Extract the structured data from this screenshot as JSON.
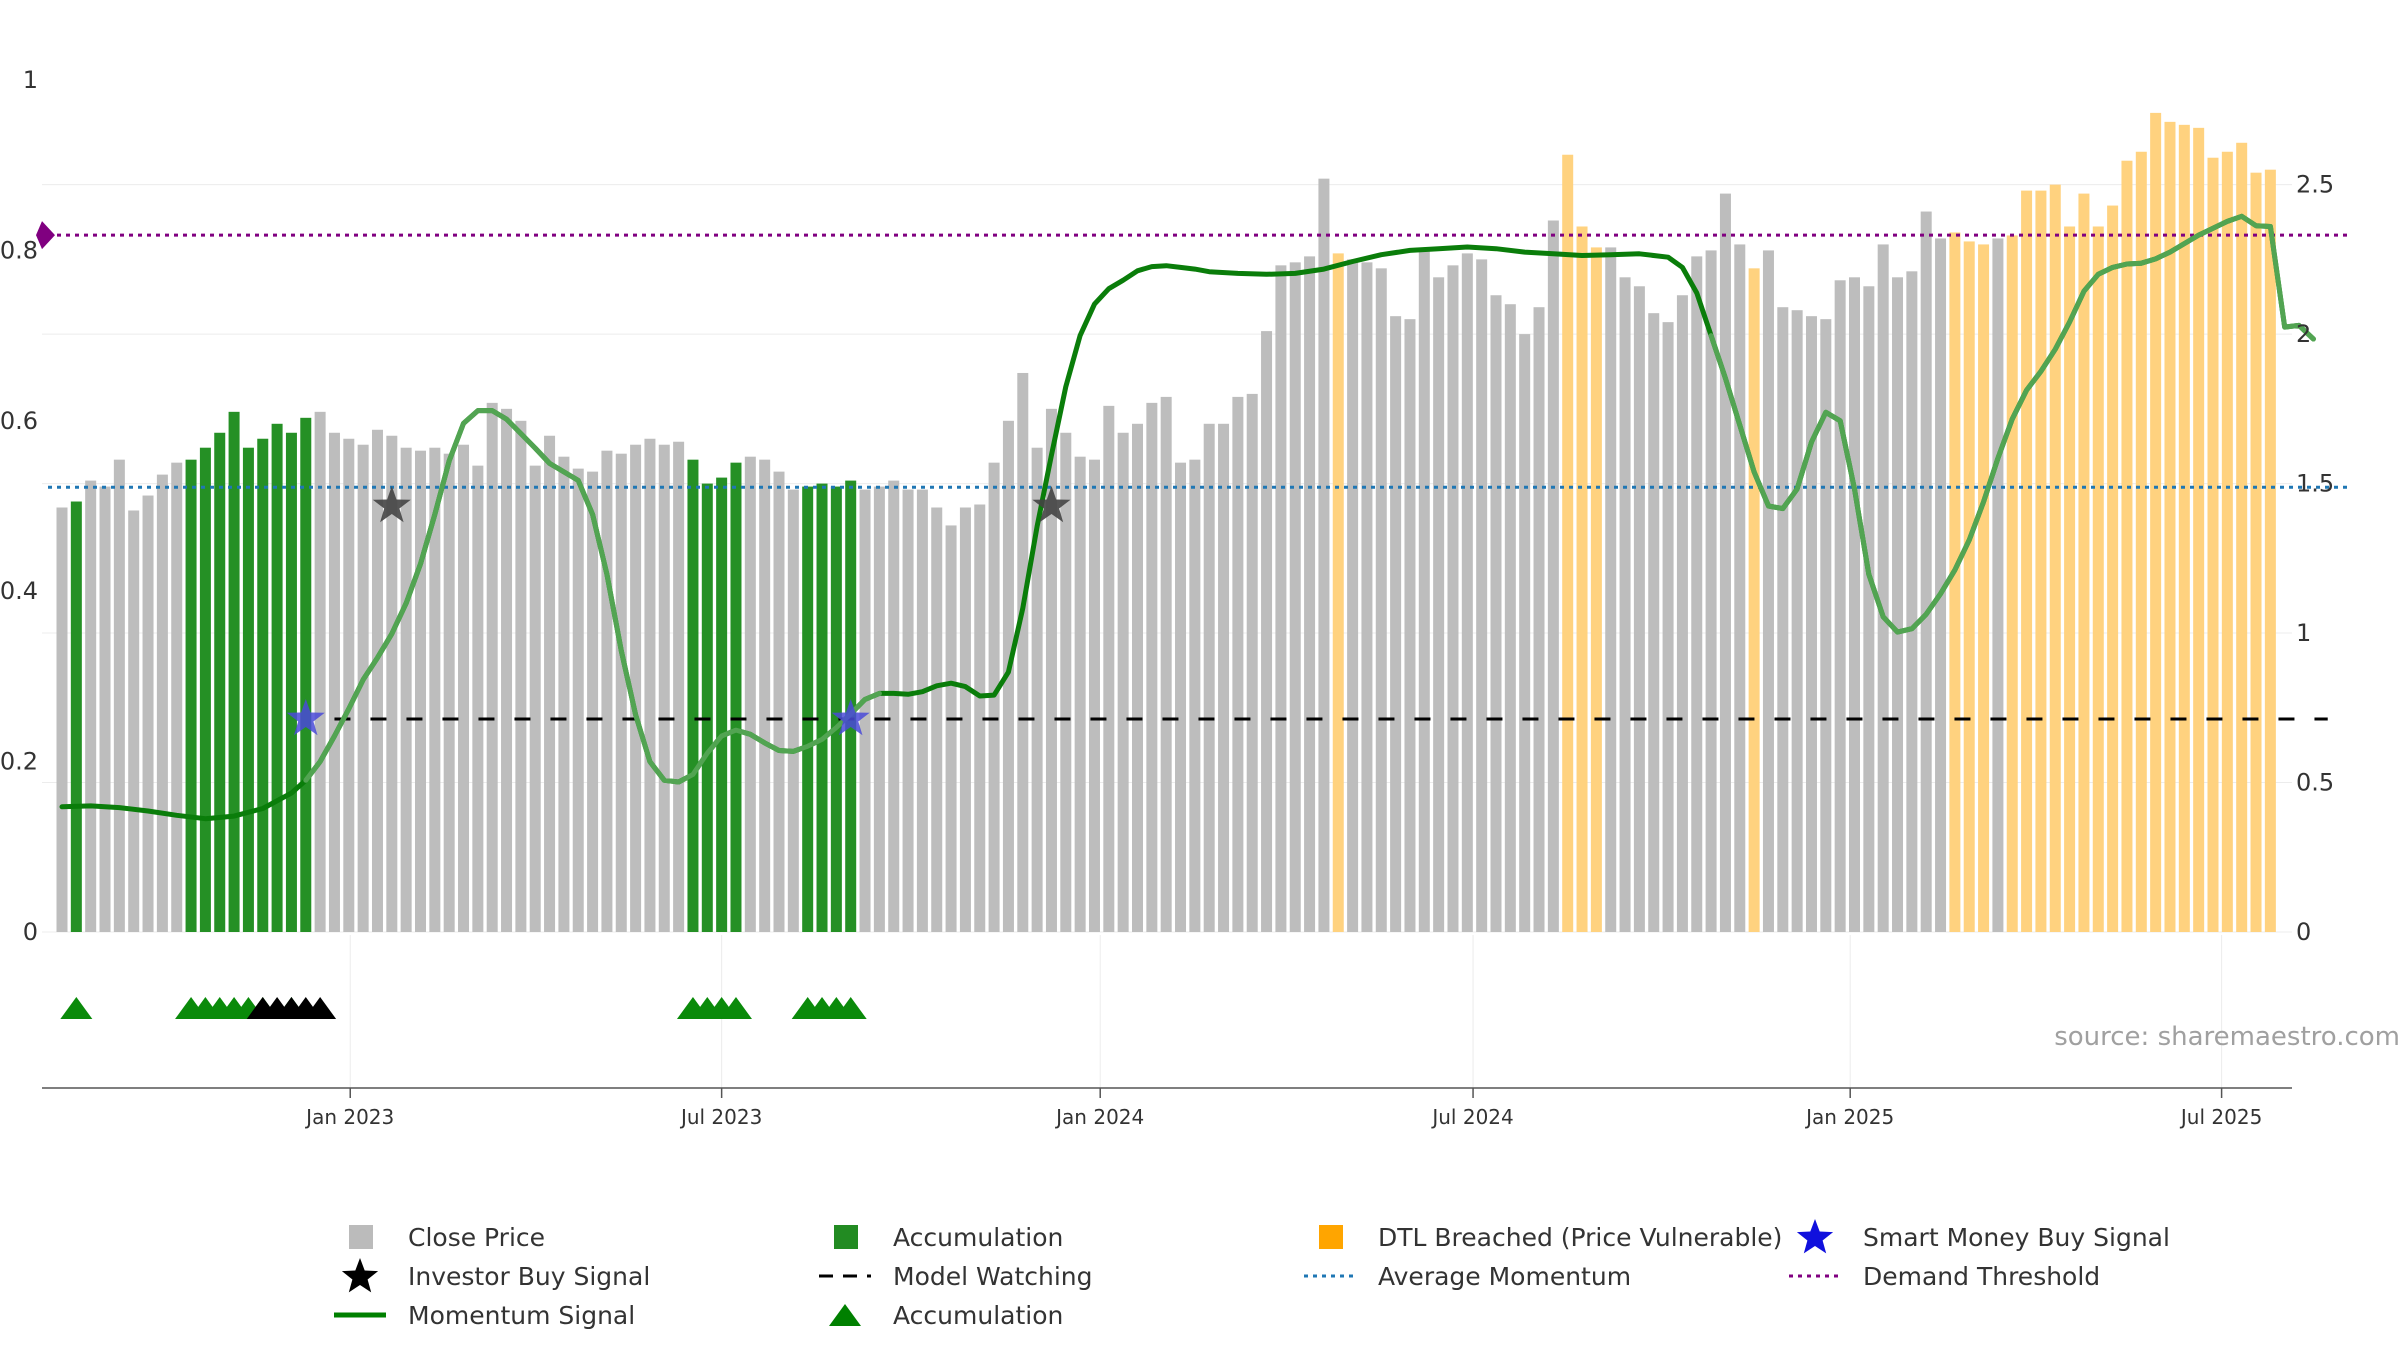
{
  "chart_data": {
    "type": "bar",
    "source": "source: sharemaestro.com",
    "y_left": {
      "range": [
        0,
        1
      ],
      "ticks": [
        "0",
        "0.2",
        "0.4",
        "0.6",
        "0.8",
        "1"
      ]
    },
    "y_right": {
      "range": [
        0,
        2.85
      ],
      "ticks": [
        "0",
        "0.5",
        "1",
        "1.5",
        "2",
        "2.5"
      ]
    },
    "x_ticks": [
      {
        "label": "Jan 2023",
        "week": 20.1
      },
      {
        "label": "Jul 2023",
        "week": 46.0
      },
      {
        "label": "Jan 2024",
        "week": 72.4
      },
      {
        "label": "Jul 2024",
        "week": 98.4
      },
      {
        "label": "Jan 2025",
        "week": 124.7
      },
      {
        "label": "Jul 2025",
        "week": 150.6
      }
    ],
    "close_price": [
      1.42,
      1.44,
      1.51,
      1.49,
      1.58,
      1.41,
      1.46,
      1.53,
      1.57,
      1.58,
      1.62,
      1.67,
      1.74,
      1.62,
      1.65,
      1.7,
      1.67,
      1.72,
      1.74,
      1.67,
      1.65,
      1.63,
      1.68,
      1.66,
      1.62,
      1.61,
      1.62,
      1.6,
      1.63,
      1.56,
      1.77,
      1.75,
      1.71,
      1.56,
      1.66,
      1.59,
      1.55,
      1.54,
      1.61,
      1.6,
      1.63,
      1.65,
      1.63,
      1.64,
      1.58,
      1.5,
      1.52,
      1.57,
      1.59,
      1.58,
      1.54,
      1.48,
      1.49,
      1.5,
      1.49,
      1.51,
      1.48,
      1.49,
      1.51,
      1.48,
      1.48,
      1.42,
      1.36,
      1.42,
      1.43,
      1.57,
      1.71,
      1.87,
      1.62,
      1.75,
      1.67,
      1.59,
      1.58,
      1.76,
      1.67,
      1.7,
      1.77,
      1.79,
      1.57,
      1.58,
      1.7,
      1.7,
      1.79,
      1.8,
      2.01,
      2.23,
      2.24,
      2.26,
      2.52,
      2.27,
      2.25,
      2.24,
      2.22,
      2.06,
      2.05,
      2.28,
      2.19,
      2.23,
      2.27,
      2.25,
      2.13,
      2.1,
      2.0,
      2.09,
      2.38,
      2.6,
      2.36,
      2.29,
      2.29,
      2.19,
      2.16,
      2.07,
      2.04,
      2.13,
      2.26,
      2.28,
      2.47,
      2.3,
      2.22,
      2.28,
      2.09,
      2.08,
      2.06,
      2.05,
      2.18,
      2.19,
      2.16,
      2.3,
      2.19,
      2.21,
      2.41,
      2.32,
      2.34,
      2.31,
      2.3,
      2.32,
      2.33,
      2.48,
      2.48,
      2.5,
      2.36,
      2.47,
      2.36,
      2.43,
      2.58,
      2.61,
      2.74,
      2.71,
      2.7,
      2.69,
      2.59,
      2.61,
      2.64,
      2.54,
      2.55
    ],
    "state": "mmmmmmmmmmmmmmmmmmmmmmmmmmmmmmmmmmmmmmmmmmmmmmmmmmmmmmmmmmmmmmmmmmmmmmmmmmmmmmmmmmmmmmmmmmmmmmmmmmmmmmmmmmmmmmmmmmmmmmmmmmmmmmmmmmmmmmmmmmmmmmmmmmmmmmmmmmmm",
    "accumulation_weeks": [
      1,
      9,
      10,
      11,
      12,
      13,
      14,
      15,
      16,
      17,
      44,
      45,
      46,
      47,
      52,
      53,
      54,
      55
    ],
    "dtl_breached_weeks": [
      89,
      105,
      106,
      107,
      118,
      132,
      133,
      134,
      136,
      137,
      138,
      139,
      140,
      141,
      142,
      143,
      144,
      145,
      146,
      147,
      148,
      149,
      150,
      151,
      152,
      153,
      154,
      155,
      156,
      157,
      158
    ],
    "momentum": [
      [
        0,
        0.147
      ],
      [
        2,
        0.148
      ],
      [
        4,
        0.146
      ],
      [
        6,
        0.142
      ],
      [
        8,
        0.137
      ],
      [
        10,
        0.133
      ],
      [
        12,
        0.136
      ],
      [
        14,
        0.145
      ],
      [
        16,
        0.163
      ],
      [
        17,
        0.178
      ],
      [
        18,
        0.2
      ],
      [
        19,
        0.23
      ],
      [
        20,
        0.262
      ],
      [
        21,
        0.296
      ],
      [
        22,
        0.322
      ],
      [
        23,
        0.35
      ],
      [
        24,
        0.386
      ],
      [
        25,
        0.432
      ],
      [
        26,
        0.49
      ],
      [
        27,
        0.553
      ],
      [
        28,
        0.597
      ],
      [
        29,
        0.612
      ],
      [
        30,
        0.612
      ],
      [
        31,
        0.602
      ],
      [
        32,
        0.585
      ],
      [
        33,
        0.568
      ],
      [
        34,
        0.55
      ],
      [
        35,
        0.54
      ],
      [
        36,
        0.53
      ],
      [
        37,
        0.49
      ],
      [
        38,
        0.42
      ],
      [
        39,
        0.33
      ],
      [
        40,
        0.255
      ],
      [
        41,
        0.2
      ],
      [
        42,
        0.178
      ],
      [
        43,
        0.176
      ],
      [
        44,
        0.185
      ],
      [
        45,
        0.21
      ],
      [
        46,
        0.23
      ],
      [
        47,
        0.237
      ],
      [
        48,
        0.232
      ],
      [
        49,
        0.222
      ],
      [
        50,
        0.213
      ],
      [
        51,
        0.212
      ],
      [
        52,
        0.218
      ],
      [
        53,
        0.226
      ],
      [
        54,
        0.24
      ],
      [
        55,
        0.256
      ],
      [
        56,
        0.273
      ],
      [
        57,
        0.28
      ],
      [
        58,
        0.28
      ],
      [
        59,
        0.279
      ],
      [
        60,
        0.282
      ],
      [
        61,
        0.289
      ],
      [
        62,
        0.292
      ],
      [
        63,
        0.288
      ],
      [
        64,
        0.277
      ],
      [
        65,
        0.278
      ],
      [
        66,
        0.305
      ],
      [
        67,
        0.38
      ],
      [
        68,
        0.476
      ],
      [
        69,
        0.56
      ],
      [
        70,
        0.64
      ],
      [
        71,
        0.7
      ],
      [
        72,
        0.737
      ],
      [
        73,
        0.755
      ],
      [
        74,
        0.765
      ],
      [
        75,
        0.776
      ],
      [
        76,
        0.781
      ],
      [
        77,
        0.782
      ],
      [
        78,
        0.78
      ],
      [
        79,
        0.778
      ],
      [
        80,
        0.775
      ],
      [
        82,
        0.773
      ],
      [
        84,
        0.772
      ],
      [
        86,
        0.773
      ],
      [
        88,
        0.778
      ],
      [
        90,
        0.787
      ],
      [
        92,
        0.795
      ],
      [
        94,
        0.8
      ],
      [
        96,
        0.802
      ],
      [
        98,
        0.804
      ],
      [
        100,
        0.802
      ],
      [
        102,
        0.798
      ],
      [
        104,
        0.796
      ],
      [
        106,
        0.794
      ],
      [
        108,
        0.795
      ],
      [
        110,
        0.796
      ],
      [
        112,
        0.792
      ],
      [
        113,
        0.78
      ],
      [
        114,
        0.75
      ],
      [
        115,
        0.7
      ],
      [
        116,
        0.65
      ],
      [
        117,
        0.595
      ],
      [
        118,
        0.54
      ],
      [
        119,
        0.5
      ],
      [
        120,
        0.497
      ],
      [
        121,
        0.52
      ],
      [
        122,
        0.575
      ],
      [
        123,
        0.61
      ],
      [
        124,
        0.6
      ],
      [
        125,
        0.52
      ],
      [
        126,
        0.42
      ],
      [
        127,
        0.37
      ],
      [
        128,
        0.352
      ],
      [
        129,
        0.356
      ],
      [
        130,
        0.373
      ],
      [
        131,
        0.397
      ],
      [
        132,
        0.425
      ],
      [
        133,
        0.46
      ],
      [
        134,
        0.505
      ],
      [
        135,
        0.556
      ],
      [
        136,
        0.602
      ],
      [
        137,
        0.636
      ],
      [
        138,
        0.658
      ],
      [
        139,
        0.684
      ],
      [
        140,
        0.716
      ],
      [
        141,
        0.752
      ],
      [
        142,
        0.772
      ],
      [
        143,
        0.78
      ],
      [
        144,
        0.784
      ],
      [
        145,
        0.785
      ],
      [
        146,
        0.79
      ],
      [
        147,
        0.798
      ],
      [
        148,
        0.808
      ],
      [
        149,
        0.818
      ],
      [
        150,
        0.826
      ],
      [
        151,
        0.834
      ],
      [
        152,
        0.84
      ],
      [
        153,
        0.829
      ],
      [
        154,
        0.828
      ],
      [
        155,
        0.71
      ],
      [
        156,
        0.712
      ],
      [
        157,
        0.696
      ]
    ],
    "momentum_dim_ranges": [
      [
        17,
        57
      ],
      [
        115,
        158
      ]
    ],
    "model_watching": {
      "value": 0.25,
      "from_week": 19,
      "to_week": 158
    },
    "average_momentum": 0.522,
    "demand_threshold": 0.818,
    "smart_money_signals": [
      [
        17,
        0.25
      ],
      [
        55,
        0.25
      ]
    ],
    "investor_buy_signals": [
      [
        23,
        0.5
      ],
      [
        69,
        0.5
      ]
    ],
    "accumulation_markers": {
      "green": [
        1,
        9,
        10,
        11,
        12,
        13,
        14,
        16,
        44,
        45,
        46,
        47,
        52,
        53,
        54,
        55
      ],
      "black": [
        14,
        15,
        16,
        17,
        18
      ]
    },
    "legend": [
      {
        "label": "Close Price",
        "symbol": "square",
        "color": "#bbbbbb"
      },
      {
        "label": "Accumulation",
        "symbol": "square",
        "color": "#228b22"
      },
      {
        "label": "DTL Breached (Price Vulnerable)",
        "symbol": "square",
        "color": "#ffa500"
      },
      {
        "label": "Smart Money Buy Signal",
        "symbol": "star",
        "color": "#1010dd"
      },
      {
        "label": "Investor Buy Signal",
        "symbol": "star",
        "color": "#000000"
      },
      {
        "label": "Model Watching",
        "symbol": "dash",
        "color": "#000000"
      },
      {
        "label": "Average Momentum",
        "symbol": "dot",
        "color": "#1f77b4"
      },
      {
        "label": "Demand Threshold",
        "symbol": "dot",
        "color": "#800080"
      },
      {
        "label": "Momentum Signal",
        "symbol": "line",
        "color": "#008000"
      },
      {
        "label": "Accumulation",
        "symbol": "triangle",
        "color": "#008000"
      }
    ]
  }
}
